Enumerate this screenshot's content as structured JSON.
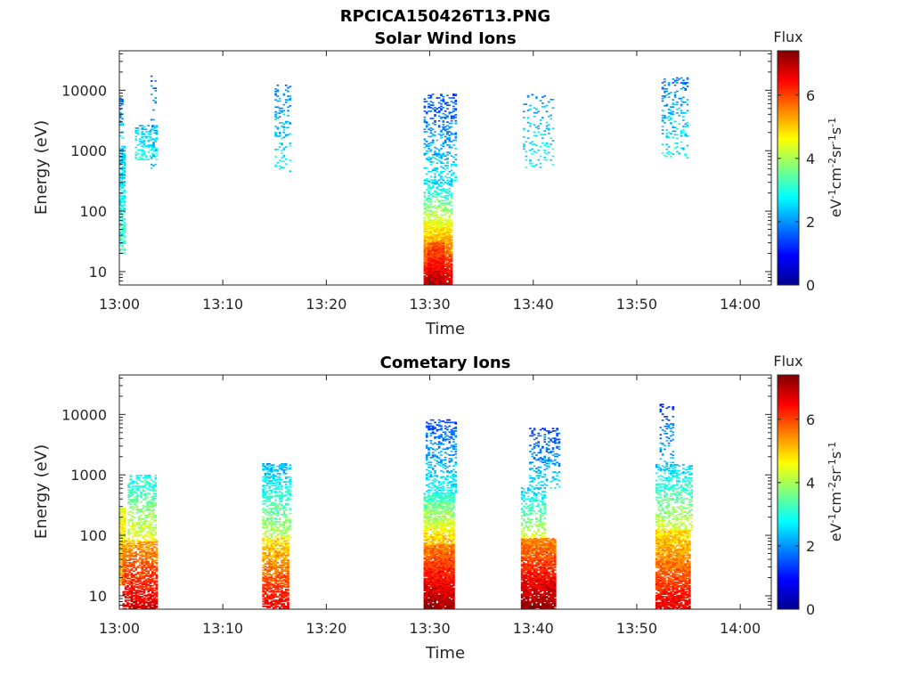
{
  "figure_title": "RPCICA150426T13.PNG",
  "chart_data": [
    {
      "type": "heatmap",
      "title": "Solar Wind Ions",
      "xlabel": "Time",
      "ylabel": "Energy (eV)",
      "x_ticks": [
        "13:00",
        "13:10",
        "13:20",
        "13:30",
        "13:40",
        "13:50",
        "14:00"
      ],
      "x_range_minutes": [
        0,
        63
      ],
      "y_ticks": [
        "10",
        "100",
        "1000",
        "10000"
      ],
      "y_scale": "log",
      "y_range": [
        6,
        45000
      ],
      "colorbar": {
        "title": "Flux",
        "label": "eV-1cm-2sr-1s-1",
        "ticks": [
          "0",
          "2",
          "4",
          "6"
        ],
        "range": [
          0,
          7.4
        ],
        "colormap": "jet"
      },
      "clusters": [
        {
          "t_start": 0.0,
          "t_end": 0.5,
          "e_lo": 20,
          "e_hi": 1200,
          "flux_lo": 2.3,
          "flux_hi": 3.2,
          "density": 0.55
        },
        {
          "t_start": 0.0,
          "t_end": 0.4,
          "e_lo": 1200,
          "e_hi": 8000,
          "flux_lo": 1.8,
          "flux_hi": 2.6,
          "density": 0.3
        },
        {
          "t_start": 1.5,
          "t_end": 3.6,
          "e_lo": 700,
          "e_hi": 2600,
          "flux_lo": 2.2,
          "flux_hi": 3.0,
          "density": 0.35
        },
        {
          "t_start": 3.0,
          "t_end": 3.6,
          "e_lo": 350,
          "e_hi": 17000,
          "flux_lo": 1.6,
          "flux_hi": 2.4,
          "density": 0.12
        },
        {
          "t_start": 15.0,
          "t_end": 16.6,
          "e_lo": 450,
          "e_hi": 12000,
          "flux_lo": 1.9,
          "flux_hi": 2.8,
          "density": 0.22
        },
        {
          "t_start": 29.4,
          "t_end": 32.2,
          "e_lo": 6,
          "e_hi": 70,
          "flux_lo": 4.4,
          "flux_hi": 6.9,
          "density": 0.92
        },
        {
          "t_start": 29.8,
          "t_end": 31.4,
          "e_lo": 6,
          "e_hi": 30,
          "flux_lo": 5.8,
          "flux_hi": 7.0,
          "density": 0.95
        },
        {
          "t_start": 29.4,
          "t_end": 32.2,
          "e_lo": 70,
          "e_hi": 320,
          "flux_lo": 2.4,
          "flux_hi": 4.4,
          "density": 0.45
        },
        {
          "t_start": 29.4,
          "t_end": 32.6,
          "e_lo": 320,
          "e_hi": 8500,
          "flux_lo": 1.4,
          "flux_hi": 2.7,
          "density": 0.3
        },
        {
          "t_start": 39.0,
          "t_end": 42.0,
          "e_lo": 500,
          "e_hi": 8500,
          "flux_lo": 2.0,
          "flux_hi": 2.9,
          "density": 0.12
        },
        {
          "t_start": 52.4,
          "t_end": 55.0,
          "e_lo": 750,
          "e_hi": 16000,
          "flux_lo": 1.8,
          "flux_hi": 2.8,
          "density": 0.2
        }
      ]
    },
    {
      "type": "heatmap",
      "title": "Cometary Ions",
      "xlabel": "Time",
      "ylabel": "Energy (eV)",
      "x_ticks": [
        "13:00",
        "13:10",
        "13:20",
        "13:30",
        "13:40",
        "13:50",
        "14:00"
      ],
      "x_range_minutes": [
        0,
        63
      ],
      "y_ticks": [
        "10",
        "100",
        "1000",
        "10000"
      ],
      "y_scale": "log",
      "y_range": [
        6,
        45000
      ],
      "colorbar": {
        "title": "Flux",
        "label": "eV-1cm-2sr-1s-1",
        "ticks": [
          "0",
          "2",
          "4",
          "6"
        ],
        "range": [
          0,
          7.4
        ],
        "colormap": "jet"
      },
      "clusters": [
        {
          "t_start": 0.0,
          "t_end": 0.5,
          "e_lo": 15,
          "e_hi": 280,
          "flux_lo": 4.4,
          "flux_hi": 5.4,
          "density": 0.85
        },
        {
          "t_start": 0.3,
          "t_end": 3.6,
          "e_lo": 6,
          "e_hi": 80,
          "flux_lo": 5.2,
          "flux_hi": 6.9,
          "density": 0.7
        },
        {
          "t_start": 0.8,
          "t_end": 3.6,
          "e_lo": 80,
          "e_hi": 1000,
          "flux_lo": 2.8,
          "flux_hi": 4.6,
          "density": 0.45
        },
        {
          "t_start": 13.8,
          "t_end": 16.4,
          "e_lo": 6,
          "e_hi": 90,
          "flux_lo": 4.8,
          "flux_hi": 6.6,
          "density": 0.72
        },
        {
          "t_start": 13.8,
          "t_end": 16.6,
          "e_lo": 90,
          "e_hi": 1500,
          "flux_lo": 2.2,
          "flux_hi": 4.2,
          "density": 0.5
        },
        {
          "t_start": 29.4,
          "t_end": 32.4,
          "e_lo": 6,
          "e_hi": 70,
          "flux_lo": 5.5,
          "flux_hi": 7.2,
          "density": 0.95
        },
        {
          "t_start": 29.4,
          "t_end": 32.4,
          "e_lo": 70,
          "e_hi": 500,
          "flux_lo": 3.0,
          "flux_hi": 5.2,
          "density": 0.75
        },
        {
          "t_start": 29.6,
          "t_end": 32.6,
          "e_lo": 500,
          "e_hi": 8000,
          "flux_lo": 1.4,
          "flux_hi": 2.8,
          "density": 0.35
        },
        {
          "t_start": 38.8,
          "t_end": 42.2,
          "e_lo": 6,
          "e_hi": 90,
          "flux_lo": 5.4,
          "flux_hi": 7.3,
          "density": 0.9
        },
        {
          "t_start": 38.8,
          "t_end": 41.2,
          "e_lo": 90,
          "e_hi": 600,
          "flux_lo": 2.4,
          "flux_hi": 4.4,
          "density": 0.45
        },
        {
          "t_start": 39.6,
          "t_end": 42.6,
          "e_lo": 600,
          "e_hi": 6000,
          "flux_lo": 1.4,
          "flux_hi": 2.6,
          "density": 0.25
        },
        {
          "t_start": 51.8,
          "t_end": 55.2,
          "e_lo": 6,
          "e_hi": 120,
          "flux_lo": 4.8,
          "flux_hi": 6.7,
          "density": 0.85
        },
        {
          "t_start": 51.8,
          "t_end": 55.4,
          "e_lo": 120,
          "e_hi": 1500,
          "flux_lo": 2.4,
          "flux_hi": 4.4,
          "density": 0.45
        },
        {
          "t_start": 52.2,
          "t_end": 53.6,
          "e_lo": 1500,
          "e_hi": 15000,
          "flux_lo": 1.4,
          "flux_hi": 2.4,
          "density": 0.2
        }
      ]
    }
  ]
}
